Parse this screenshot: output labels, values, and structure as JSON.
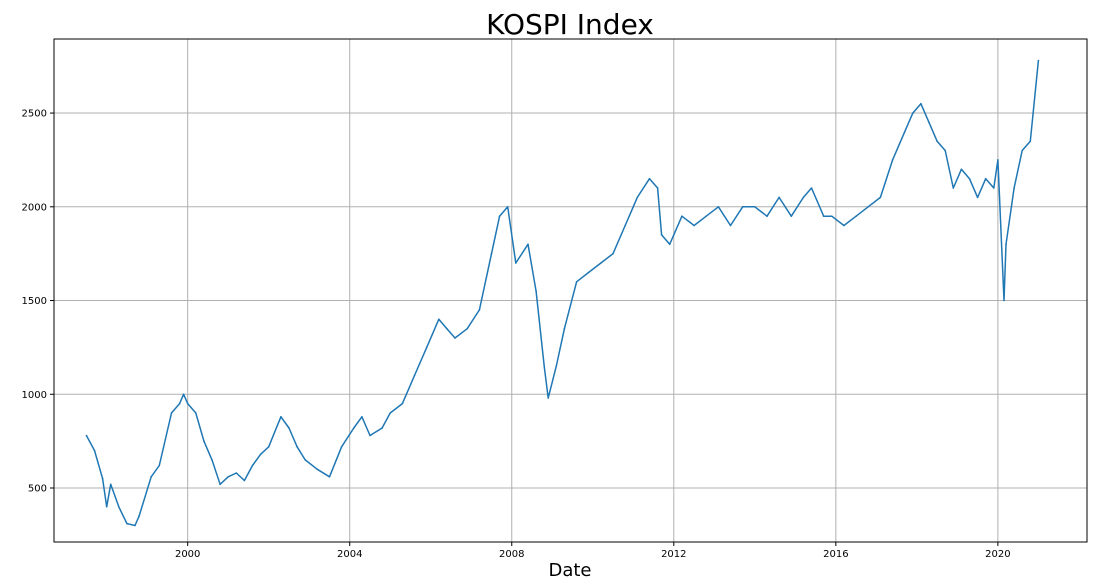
{
  "chart_data": {
    "type": "line",
    "title": "KOSPI Index",
    "xlabel": "Date",
    "ylabel": "",
    "grid": true,
    "color": "#1f77b4",
    "xlim": [
      1996.7,
      2022.2
    ],
    "ylim": [
      212,
      2895
    ],
    "x_ticks": [
      2000,
      2004,
      2008,
      2012,
      2016,
      2020
    ],
    "x_tick_labels": [
      "2000",
      "2004",
      "2008",
      "2012",
      "2016",
      "2020"
    ],
    "y_ticks": [
      500,
      1000,
      1500,
      2000,
      2500
    ],
    "y_tick_labels": [
      "500",
      "1000",
      "1500",
      "2000",
      "2500"
    ],
    "series": [
      {
        "name": "KOSPI",
        "x": [
          1997.5,
          1997.7,
          1997.9,
          1998.0,
          1998.1,
          1998.3,
          1998.5,
          1998.7,
          1998.8,
          1999.1,
          1999.3,
          1999.6,
          1999.8,
          1999.9,
          2000.0,
          2000.2,
          2000.4,
          2000.6,
          2000.8,
          2001.0,
          2001.2,
          2001.4,
          2001.6,
          2001.8,
          2002.0,
          2002.3,
          2002.5,
          2002.7,
          2002.9,
          2003.2,
          2003.5,
          2003.8,
          2004.1,
          2004.3,
          2004.5,
          2004.8,
          2005.0,
          2005.3,
          2005.6,
          2005.9,
          2006.2,
          2006.4,
          2006.6,
          2006.9,
          2007.2,
          2007.5,
          2007.7,
          2007.9,
          2008.1,
          2008.4,
          2008.6,
          2008.8,
          2008.9,
          2009.1,
          2009.3,
          2009.6,
          2009.9,
          2010.2,
          2010.5,
          2010.8,
          2011.1,
          2011.4,
          2011.6,
          2011.7,
          2011.9,
          2012.2,
          2012.5,
          2012.8,
          2013.1,
          2013.4,
          2013.7,
          2014.0,
          2014.3,
          2014.6,
          2014.9,
          2015.2,
          2015.4,
          2015.7,
          2015.9,
          2016.2,
          2016.5,
          2016.8,
          2017.1,
          2017.4,
          2017.7,
          2017.9,
          2018.1,
          2018.3,
          2018.5,
          2018.7,
          2018.9,
          2019.1,
          2019.3,
          2019.5,
          2019.7,
          2019.9,
          2020.0,
          2020.15,
          2020.2,
          2020.4,
          2020.6,
          2020.8,
          2021.0
        ],
        "y": [
          780,
          700,
          550,
          400,
          520,
          400,
          310,
          300,
          350,
          560,
          620,
          900,
          950,
          1000,
          950,
          900,
          750,
          650,
          520,
          560,
          580,
          540,
          620,
          680,
          720,
          880,
          820,
          720,
          650,
          600,
          560,
          720,
          820,
          880,
          780,
          820,
          900,
          950,
          1100,
          1250,
          1400,
          1350,
          1300,
          1350,
          1450,
          1750,
          1950,
          2000,
          1700,
          1800,
          1550,
          1150,
          980,
          1150,
          1350,
          1600,
          1650,
          1700,
          1750,
          1900,
          2050,
          2150,
          2100,
          1850,
          1800,
          1950,
          1900,
          1950,
          2000,
          1900,
          2000,
          2000,
          1950,
          2050,
          1950,
          2050,
          2100,
          1950,
          1950,
          1900,
          1950,
          2000,
          2050,
          2250,
          2400,
          2500,
          2550,
          2450,
          2350,
          2300,
          2100,
          2200,
          2150,
          2050,
          2150,
          2100,
          2250,
          1500,
          1800,
          2100,
          2300,
          2350,
          2780
        ]
      }
    ]
  }
}
